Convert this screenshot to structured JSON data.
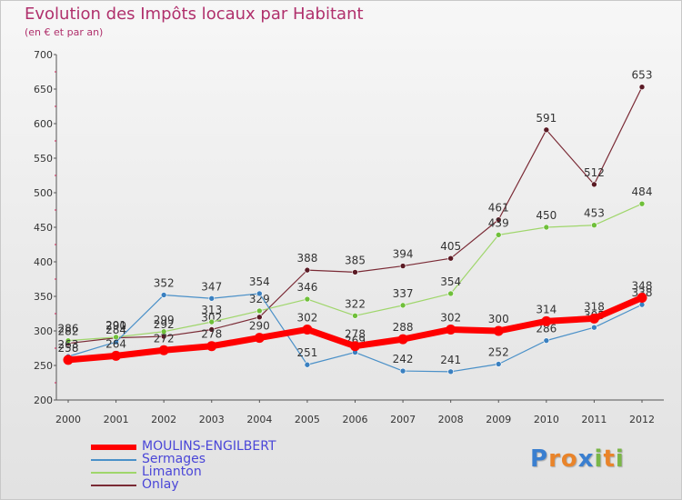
{
  "title": "Evolution des Impôts locaux par Habitant",
  "subtitle": "(en € et par an)",
  "logo": {
    "letters": [
      "P",
      "r",
      "o",
      "x",
      "i",
      "t",
      "i"
    ],
    "colors": [
      "#3a7fd0",
      "#e9842a",
      "#e9842a",
      "#3a7fd0",
      "#7ab648",
      "#e9842a",
      "#7ab648"
    ]
  },
  "chart_data": {
    "type": "line",
    "title": "Evolution des Impôts locaux par Habitant",
    "ylabel": "(en € et par an)",
    "xlabel": "",
    "ylim": [
      200,
      700
    ],
    "yticks": [
      200,
      250,
      300,
      350,
      400,
      450,
      500,
      550,
      600,
      650,
      700
    ],
    "x": [
      "2000",
      "2001",
      "2002",
      "2003",
      "2004",
      "2005",
      "2006",
      "2007",
      "2008",
      "2009",
      "2010",
      "2011",
      "2012"
    ],
    "grid": false,
    "legend_position": "bottom-left",
    "series": [
      {
        "name": "Onlay",
        "color": "#7a2a35",
        "dot": "#5a1a24",
        "width": 1.2,
        "marker": true,
        "values": [
          282,
          290,
          292,
          302,
          320,
          388,
          385,
          394,
          405,
          461,
          591,
          512,
          653
        ],
        "labels": [
          "282",
          "290",
          "292",
          "302",
          "",
          "388",
          "385",
          "394",
          "405",
          "461",
          "591",
          "512",
          "653"
        ]
      },
      {
        "name": "Limanton",
        "color": "#9fd66b",
        "dot": "#6fbf3a",
        "width": 1.2,
        "marker": true,
        "values": [
          286,
          291,
          299,
          313,
          329,
          346,
          322,
          337,
          354,
          439,
          450,
          453,
          484
        ],
        "labels": [
          "286",
          "291",
          "299",
          "313",
          "329",
          "346",
          "322",
          "337",
          "354",
          "439",
          "450",
          "453",
          "484"
        ]
      },
      {
        "name": "Sermages",
        "color": "#4a90c8",
        "dot": "#3a80c0",
        "width": 1.2,
        "marker": true,
        "values": [
          263,
          284,
          352,
          347,
          354,
          251,
          269,
          242,
          241,
          252,
          286,
          305,
          338
        ],
        "labels": [
          "263",
          "284",
          "352",
          "347",
          "354",
          "251",
          "269",
          "242",
          "241",
          "252",
          "286",
          "305",
          "338"
        ]
      },
      {
        "name": "MOULINS-ENGILBERT",
        "color": "#ff0000",
        "dot": "#ff0000",
        "width": 7,
        "marker": true,
        "values": [
          258,
          264,
          272,
          278,
          290,
          302,
          278,
          288,
          302,
          300,
          314,
          318,
          348
        ],
        "labels": [
          "258",
          "264",
          "272",
          "278",
          "290",
          "302",
          "278",
          "288",
          "302",
          "300",
          "314",
          "318",
          "348"
        ]
      }
    ],
    "legend": [
      {
        "name": "MOULINS-ENGILBERT",
        "color": "#ff0000",
        "thickness": 6
      },
      {
        "name": "Sermages",
        "color": "#4a90c8",
        "thickness": 2
      },
      {
        "name": "Limanton",
        "color": "#9fd66b",
        "thickness": 2
      },
      {
        "name": "Onlay",
        "color": "#7a2a35",
        "thickness": 2
      }
    ]
  }
}
